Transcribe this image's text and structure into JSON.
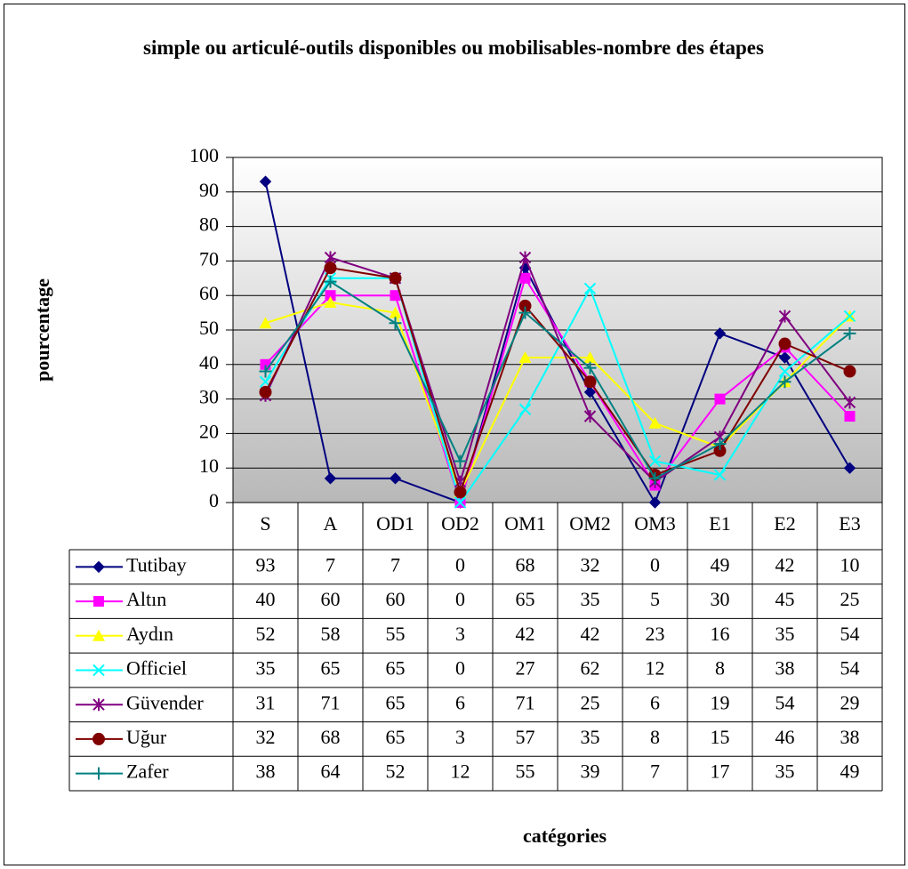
{
  "chart_data": {
    "type": "line",
    "title": "simple ou articulé-outils disponibles ou mobilisables-nombre des étapes",
    "x_label": "catégories",
    "y_label": "pourcentage",
    "categories": [
      "S",
      "A",
      "OD1",
      "OD2",
      "OM1",
      "OM2",
      "OM3",
      "E1",
      "E2",
      "E3"
    ],
    "ylim": [
      0,
      100
    ],
    "yticks": [
      0,
      10,
      20,
      30,
      40,
      50,
      60,
      70,
      80,
      90,
      100
    ],
    "grid": true,
    "series": [
      {
        "name": "Tutibay",
        "color": "#000080",
        "marker": "diamond",
        "values": [
          93,
          7,
          7,
          0,
          68,
          32,
          0,
          49,
          42,
          10
        ]
      },
      {
        "name": "Altın",
        "color": "#ff00ff",
        "marker": "square",
        "values": [
          40,
          60,
          60,
          0,
          65,
          35,
          5,
          30,
          45,
          25
        ]
      },
      {
        "name": "Aydın",
        "color": "#ffff00",
        "marker": "triangle",
        "values": [
          52,
          58,
          55,
          3,
          42,
          42,
          23,
          16,
          35,
          54
        ]
      },
      {
        "name": "Officiel",
        "color": "#00ffff",
        "marker": "x",
        "values": [
          35,
          65,
          65,
          0,
          27,
          62,
          12,
          8,
          38,
          54
        ]
      },
      {
        "name": "Güvender",
        "color": "#800080",
        "marker": "star",
        "values": [
          31,
          71,
          65,
          6,
          71,
          25,
          6,
          19,
          54,
          29
        ]
      },
      {
        "name": "Uğur",
        "color": "#800000",
        "marker": "circle",
        "values": [
          32,
          68,
          65,
          3,
          57,
          35,
          8,
          15,
          46,
          38
        ]
      },
      {
        "name": "Zafer",
        "color": "#008080",
        "marker": "plus",
        "values": [
          38,
          64,
          52,
          12,
          55,
          39,
          7,
          17,
          35,
          49
        ]
      }
    ]
  }
}
